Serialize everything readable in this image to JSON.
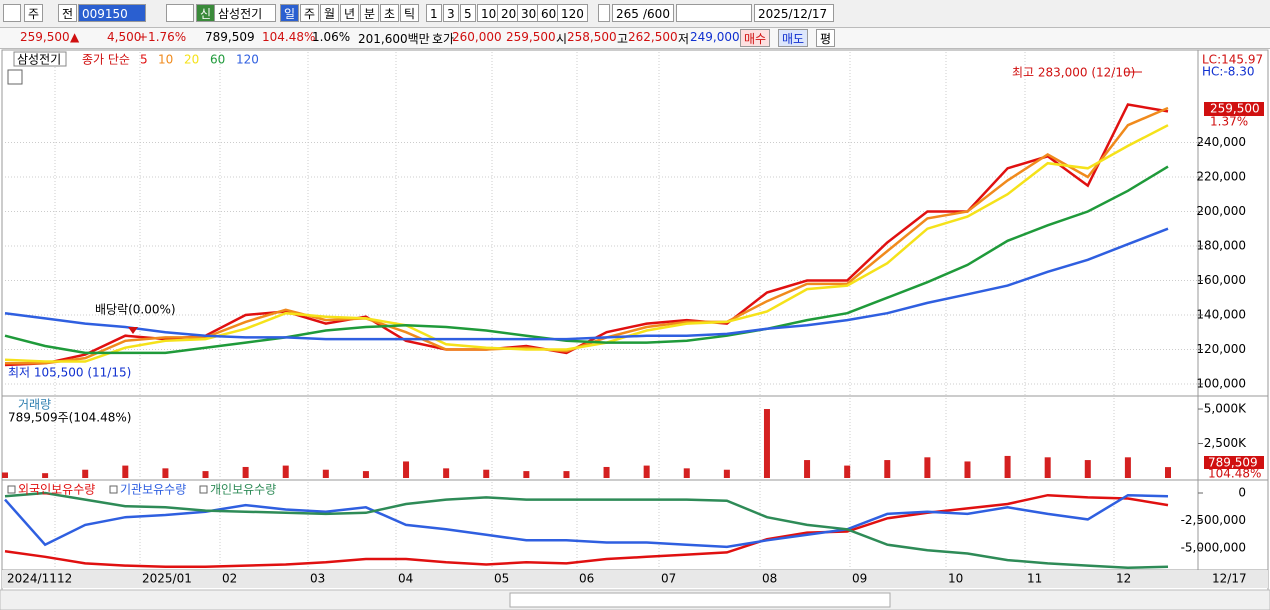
{
  "toolbar": {
    "period_type": "주",
    "range": "전",
    "code": "009150",
    "name": "삼성전기",
    "intervals": [
      "일",
      "주",
      "월",
      "년",
      "분",
      "초",
      "틱"
    ],
    "minutes": [
      "1",
      "3",
      "5",
      "10",
      "20",
      "30",
      "60",
      "120"
    ],
    "count": "265",
    "max_count": "/600",
    "date": "2025/12/17"
  },
  "quote_bar": {
    "price": "259,500",
    "arrow": "▲",
    "change": "4,500",
    "change_pct": "+1.76%",
    "volume": "789,509",
    "volume_ratio": "104.48%",
    "turnover": "1.06%",
    "amount": "201,600백만",
    "quote_label": "호가",
    "ask": "260,000",
    "bid": "259,500",
    "open_label": "시",
    "open": "258,500",
    "high_label": "고",
    "high": "262,500",
    "low_label": "저",
    "low": "249,000",
    "buy": "매수",
    "sell": "매도",
    "avg": "평"
  },
  "chart_data": [
    {
      "type": "line",
      "title": "삼성전기",
      "legend_prefix": "종가 단순",
      "ylim": [
        93600,
        290700
      ],
      "grid": true,
      "yticks": [
        {
          "value": 100000,
          "label": "100,000"
        },
        {
          "value": 120000,
          "label": "120,000"
        },
        {
          "value": 140000,
          "label": "140,000"
        },
        {
          "value": 160000,
          "label": "160,000"
        },
        {
          "value": 180000,
          "label": "180,000"
        },
        {
          "value": 200000,
          "label": "200,000"
        },
        {
          "value": 220000,
          "label": "220,000"
        },
        {
          "value": 240000,
          "label": "240,000"
        }
      ],
      "annotations": {
        "high": "최고 283,000 (12/10)",
        "low": "최저 105,500 (11/15)",
        "dividend": "배당락(0.00%)"
      },
      "lc": "LC:145.97",
      "hc": "HC:-8.30",
      "last_price_label": "259,500",
      "last_change": "1.37%",
      "series": [
        {
          "name": "5",
          "color": "#e01010",
          "values": [
            111000,
            112000,
            117000,
            128000,
            126000,
            128000,
            140000,
            142000,
            135000,
            139000,
            125000,
            120000,
            120000,
            122000,
            118000,
            130000,
            135000,
            137000,
            135000,
            153000,
            160000,
            160000,
            182000,
            200000,
            200000,
            225000,
            232000,
            215000,
            262000,
            258000
          ]
        },
        {
          "name": "10",
          "color": "#f08a1c",
          "values": [
            112000,
            112000,
            115000,
            125000,
            127000,
            127000,
            136000,
            143000,
            137000,
            138000,
            130000,
            120000,
            120000,
            121000,
            119000,
            127000,
            133000,
            136000,
            136000,
            148000,
            158000,
            158000,
            177000,
            196000,
            200000,
            218000,
            233000,
            220000,
            250000,
            260000
          ]
        },
        {
          "name": "20",
          "color": "#f5e21a",
          "values": [
            114000,
            113000,
            113000,
            121000,
            125000,
            126000,
            132000,
            141000,
            139000,
            138000,
            134000,
            123000,
            121000,
            120000,
            120000,
            124000,
            131000,
            135000,
            136000,
            142000,
            155000,
            157000,
            170000,
            190000,
            197000,
            210000,
            228000,
            225000,
            238000,
            250000
          ]
        },
        {
          "name": "60",
          "color": "#1f9a3a",
          "values": [
            128000,
            122000,
            118000,
            118000,
            118000,
            121000,
            124000,
            127000,
            131000,
            133000,
            134000,
            133000,
            131000,
            128000,
            125000,
            124000,
            124000,
            125000,
            128000,
            132000,
            137000,
            141000,
            150000,
            159000,
            169000,
            183000,
            192000,
            200000,
            212000,
            226000
          ]
        },
        {
          "name": "120",
          "color": "#2f5fe0",
          "values": [
            141000,
            138000,
            135000,
            133000,
            130000,
            128000,
            127000,
            127000,
            126000,
            126000,
            126000,
            126000,
            126000,
            126000,
            126000,
            127000,
            128000,
            128000,
            129000,
            132000,
            134000,
            137000,
            141000,
            147000,
            152000,
            157000,
            165000,
            172000,
            181000,
            190000
          ]
        }
      ]
    },
    {
      "type": "bar",
      "title": "거래량",
      "subtitle": "789,509주(104.48%)",
      "last_label": "789,509",
      "last_pct": "104.48%",
      "ylim": [
        0,
        5800
      ],
      "yticks": [
        {
          "value": 2500,
          "label": "2,500K"
        },
        {
          "value": 5000,
          "label": "5,000K"
        }
      ],
      "series": [
        {
          "name": "거래량",
          "color": "#d42020",
          "values": [
            400,
            350,
            600,
            900,
            700,
            500,
            800,
            900,
            600,
            500,
            1200,
            700,
            600,
            500,
            500,
            800,
            900,
            700,
            600,
            5000,
            1300,
            900,
            1300,
            1500,
            1200,
            1600,
            1500,
            1300,
            1500,
            789.509
          ]
        }
      ]
    },
    {
      "type": "line",
      "ylim": [
        -7000000,
        1000000
      ],
      "yticks": [
        0,
        {
          "value": -2500000,
          "label": "-2,500,000"
        },
        {
          "value": -5000000,
          "label": "-5,000,000"
        }
      ],
      "series": [
        {
          "name": "외국인보유수량",
          "color": "#e01010",
          "values": [
            -5300000,
            -5800000,
            -6400000,
            -6600000,
            -6700000,
            -6700000,
            -6600000,
            -6500000,
            -6300000,
            -6000000,
            -6000000,
            -6300000,
            -6500000,
            -6300000,
            -6400000,
            -6000000,
            -5800000,
            -5600000,
            -5400000,
            -4200000,
            -3600000,
            -3500000,
            -2300000,
            -1800000,
            -1400000,
            -1000000,
            -200000,
            -400000,
            -500000,
            -1100000
          ]
        },
        {
          "name": "기관보유수량",
          "color": "#2f5fe0",
          "values": [
            -600000,
            -4700000,
            -2900000,
            -2200000,
            -2000000,
            -1700000,
            -1100000,
            -1500000,
            -1700000,
            -1300000,
            -2900000,
            -3300000,
            -3800000,
            -4300000,
            -4300000,
            -4500000,
            -4500000,
            -4700000,
            -4900000,
            -4300000,
            -3800000,
            -3300000,
            -1900000,
            -1700000,
            -1900000,
            -1300000,
            -1900000,
            -2400000,
            -200000,
            -300000
          ]
        },
        {
          "name": "개인보유수량",
          "color": "#2e8b57",
          "values": [
            -300000,
            0,
            -600000,
            -1200000,
            -1300000,
            -1600000,
            -1700000,
            -1800000,
            -1900000,
            -1800000,
            -1000000,
            -600000,
            -400000,
            -600000,
            -600000,
            -600000,
            -600000,
            -600000,
            -700000,
            -2200000,
            -2900000,
            -3300000,
            -4700000,
            -5200000,
            -5500000,
            -6100000,
            -6400000,
            -6600000,
            -6800000,
            -6700000
          ]
        }
      ]
    }
  ],
  "x_axis": {
    "labels": [
      "2024/11",
      "12",
      "2025/01",
      "02",
      "03",
      "04",
      "05",
      "06",
      "07",
      "08",
      "09",
      "10",
      "11",
      "12",
      "12/17"
    ]
  }
}
